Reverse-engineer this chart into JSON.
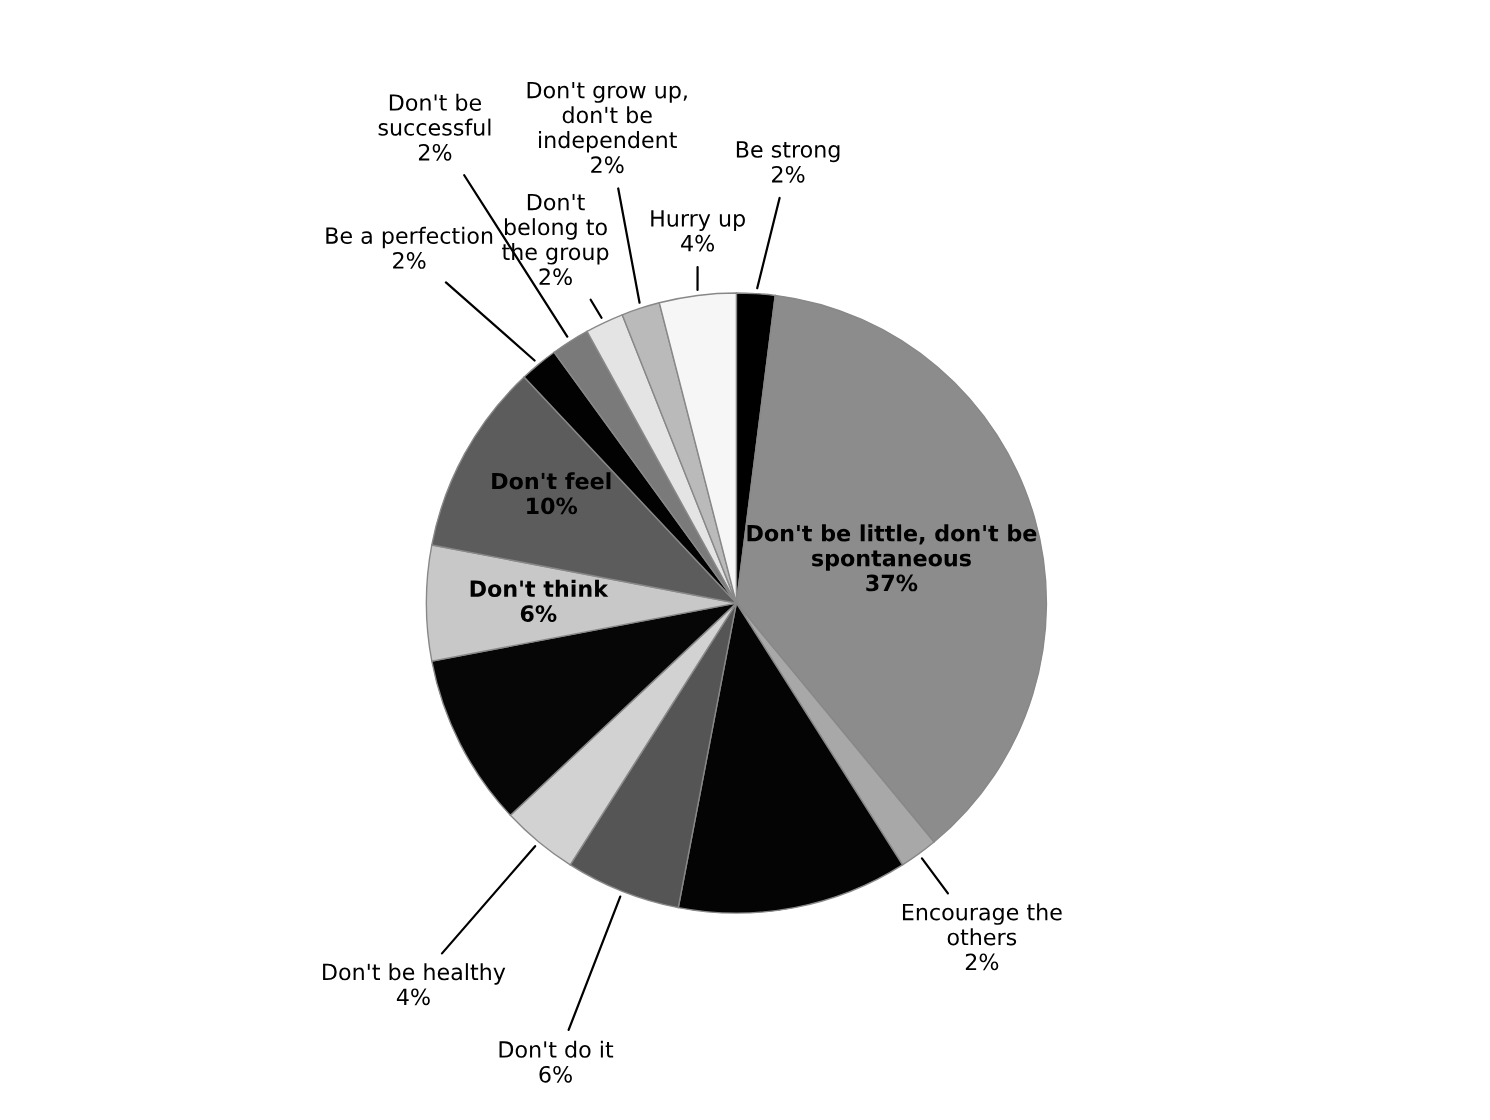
{
  "chart_data": {
    "type": "pie",
    "categories": [
      "Be strong",
      "Don't be little, don't be spontaneous",
      "Encourage the others",
      null,
      "Don't do it",
      "Don't be healthy",
      null,
      "Don't think",
      "Don't feel",
      "Be a perfection",
      "Don't be successful",
      "Don't belong to the group",
      "Don't grow up, don't be independent",
      "Hurry up"
    ],
    "values": [
      2,
      37,
      2,
      12,
      6,
      4,
      9,
      6,
      10,
      2,
      2,
      2,
      2,
      4
    ],
    "value_labels": [
      "2%",
      "37%",
      "2%",
      null,
      "6%",
      "4%",
      null,
      "6%",
      "10%",
      "2%",
      "2%",
      "2%",
      "2%",
      "4%"
    ],
    "colors": [
      "#000000",
      "#8c8c8c",
      "#a8a8a8",
      "#040404",
      "#555555",
      "#d2d2d2",
      "#060606",
      "#c8c8c8",
      "#5c5c5c",
      "#020202",
      "#7a7a7a",
      "#e4e4e4",
      "#bababa",
      "#f6f6f6"
    ]
  }
}
